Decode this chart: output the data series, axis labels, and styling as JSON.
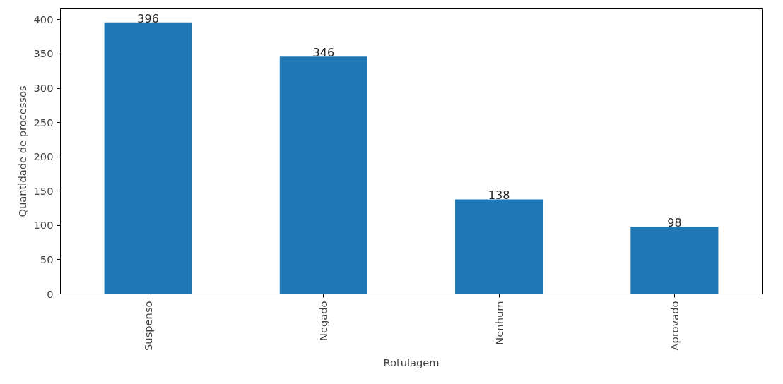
{
  "chart_data": {
    "type": "bar",
    "xlabel": "Rotulagem",
    "ylabel": "Quantidade de processos",
    "categories": [
      "Suspenso",
      "Negado",
      "Nenhum",
      "Aprovado"
    ],
    "values": [
      396,
      346,
      138,
      98
    ],
    "color": "#1f77b4",
    "data_labels": true,
    "ylim": [
      0,
      415.8
    ],
    "yticks": [
      0,
      50,
      100,
      150,
      200,
      250,
      300,
      350,
      400
    ],
    "grid": false
  }
}
